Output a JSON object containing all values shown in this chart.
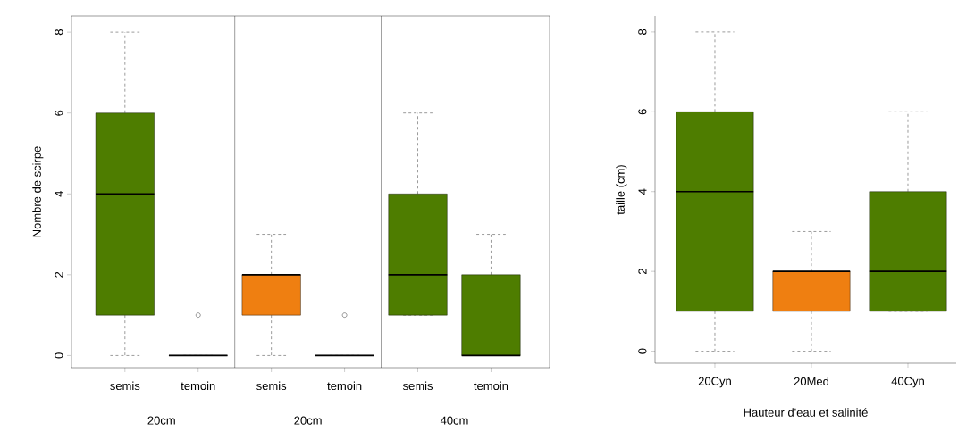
{
  "chart_data": [
    {
      "type": "box",
      "ylabel": "Nombre de scirpe",
      "categories": [
        "semis",
        "temoin",
        "semis",
        "temoin",
        "semis",
        "temoin"
      ],
      "colors": [
        "#4e7d00",
        "#000000",
        "#ef7f11",
        "#000000",
        "#4e7d00",
        "#4e7d00"
      ],
      "boxes": [
        {
          "low": 0,
          "q1": 1,
          "median": 4,
          "q3": 6,
          "high": 8
        },
        {
          "low": 0,
          "q1": 0,
          "median": 0,
          "q3": 0,
          "high": 0,
          "outliers": [
            1
          ]
        },
        {
          "low": 0,
          "q1": 1,
          "median": 2,
          "q3": 2,
          "high": 3
        },
        {
          "low": 0,
          "q1": 0,
          "median": 0,
          "q3": 0,
          "high": 0,
          "outliers": [
            1
          ]
        },
        {
          "low": 1,
          "q1": 1,
          "median": 2,
          "q3": 4,
          "high": 6
        },
        {
          "low": 0,
          "q1": 0,
          "median": 0,
          "q3": 2,
          "high": 3
        }
      ],
      "ylim": [
        -0.3,
        8.4
      ],
      "yticks": [
        0,
        2,
        4,
        6,
        8
      ],
      "annotations": [
        "20cm",
        "20cm",
        "40cm"
      ]
    },
    {
      "type": "box",
      "xlabel": "Hauteur d'eau et salinité",
      "ylabel": "taille (cm)",
      "categories": [
        "20Cyn",
        "20Med",
        "40Cyn"
      ],
      "colors": [
        "#4e7d00",
        "#ef7f11",
        "#4e7d00"
      ],
      "boxes": [
        {
          "low": 0,
          "q1": 1,
          "median": 4,
          "q3": 6,
          "high": 8
        },
        {
          "low": 0,
          "q1": 1,
          "median": 2,
          "q3": 2,
          "high": 3
        },
        {
          "low": 1,
          "q1": 1,
          "median": 2,
          "q3": 4,
          "high": 6
        }
      ],
      "ylim": [
        -0.3,
        8.4
      ],
      "yticks": [
        0,
        2,
        4,
        6,
        8
      ]
    }
  ]
}
